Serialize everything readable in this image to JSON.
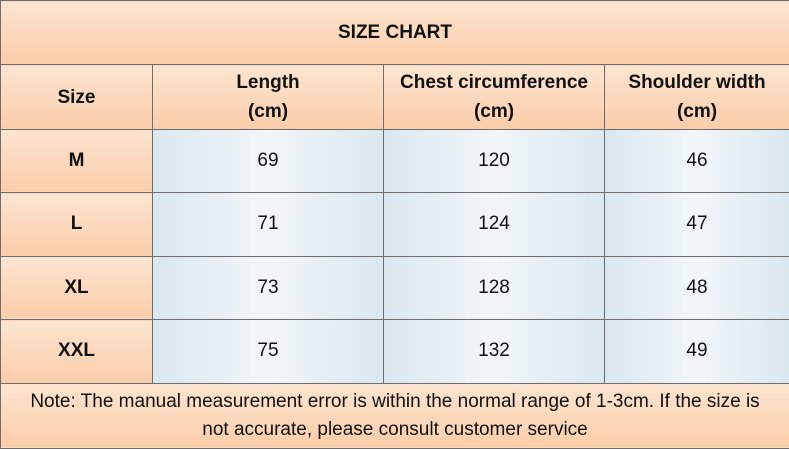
{
  "title": "SIZE CHART",
  "table": {
    "header": [
      "Size",
      "Length\n(cm)",
      "Chest circumference\n(cm)",
      "Shoulder width\n(cm)"
    ],
    "rows": [
      [
        "M",
        69,
        120,
        46
      ],
      [
        "L",
        71,
        124,
        47
      ],
      [
        "XL",
        73,
        128,
        48
      ],
      [
        "XXL",
        75,
        132,
        49
      ]
    ]
  },
  "note": "Note: The manual measurement error is within the normal range of 1-3cm. If the size is not accurate, please consult customer service"
}
